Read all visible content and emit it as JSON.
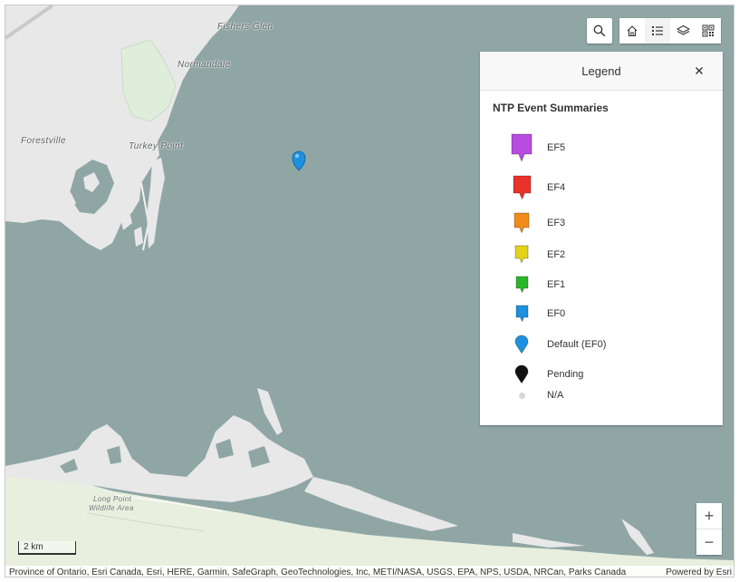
{
  "map": {
    "place_labels": [
      {
        "id": "fishers-glen",
        "text": "Fishers Glen"
      },
      {
        "id": "normandale",
        "text": "Normandale"
      },
      {
        "id": "forestville",
        "text": "Forestville"
      },
      {
        "id": "turkey-point",
        "text": "Turkey Point"
      },
      {
        "id": "long-point",
        "text": "Long Point"
      },
      {
        "id": "wildlife-area",
        "text": "Wildlife Area"
      }
    ],
    "marker_color": "#1e90e0",
    "colors": {
      "water": "#8fa6a5",
      "land": "#e8e8e8",
      "park": "#dfeedb",
      "sand": "#e9efde"
    }
  },
  "toolbar": {
    "search_icon": "search-icon",
    "home_icon": "home-icon",
    "legend_icon": "legend-list-icon",
    "layers_icon": "layers-icon",
    "qr_icon": "qr-code-icon"
  },
  "legend": {
    "header": "Legend",
    "close_icon": "close-icon",
    "layer_title": "NTP Event Summaries",
    "items": [
      {
        "label": "EF5",
        "color": "#b84be0",
        "shape": "square-pin",
        "size": 22
      },
      {
        "label": "EF4",
        "color": "#e8322a",
        "shape": "square-pin",
        "size": 19
      },
      {
        "label": "EF3",
        "color": "#f08c1c",
        "shape": "square-pin",
        "size": 16
      },
      {
        "label": "EF2",
        "color": "#e2d21a",
        "shape": "square-pin",
        "size": 14
      },
      {
        "label": "EF1",
        "color": "#2ab82a",
        "shape": "square-pin",
        "size": 13
      },
      {
        "label": "EF0",
        "color": "#1e90e0",
        "shape": "square-pin",
        "size": 13
      },
      {
        "label": "Default (EF0)",
        "color": "#1e90e0",
        "shape": "round-pin",
        "size": 14
      },
      {
        "label": "Pending",
        "color": "#111111",
        "shape": "round-pin",
        "size": 14
      },
      {
        "label": "N/A",
        "color": "#d8d8d8",
        "shape": "dot",
        "size": 7
      }
    ]
  },
  "zoom": {
    "in_label": "+",
    "out_label": "−"
  },
  "scale": {
    "label": "2 km"
  },
  "attribution": {
    "text": "Province of Ontario, Esri Canada, Esri, HERE, Garmin, SafeGraph, GeoTechnologies, Inc, METI/NASA, USGS, EPA, NPS, USDA, NRCan, Parks Canada",
    "powered_by": "Powered by Esri"
  }
}
